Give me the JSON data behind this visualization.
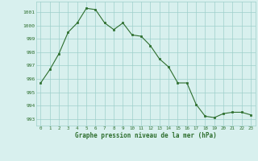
{
  "x": [
    0,
    1,
    2,
    3,
    4,
    5,
    6,
    7,
    8,
    9,
    10,
    11,
    12,
    13,
    14,
    15,
    16,
    17,
    18,
    19,
    20,
    21,
    22,
    23
  ],
  "y": [
    995.7,
    996.7,
    997.9,
    999.5,
    1000.2,
    1001.3,
    1001.2,
    1000.2,
    999.7,
    1000.2,
    999.3,
    999.2,
    998.5,
    997.5,
    996.9,
    995.7,
    995.7,
    994.1,
    993.2,
    993.1,
    993.4,
    993.5,
    993.5,
    993.3
  ],
  "line_color": "#2d6e2d",
  "marker_color": "#2d6e2d",
  "bg_color": "#d8f0ee",
  "grid_color": "#9ecfcb",
  "text_color": "#2d6e2d",
  "xlabel": "Graphe pression niveau de la mer (hPa)",
  "ylim_min": 992.5,
  "ylim_max": 1001.8,
  "yticks": [
    993,
    994,
    995,
    996,
    997,
    998,
    999,
    1000,
    1001
  ],
  "xticks": [
    0,
    1,
    2,
    3,
    4,
    5,
    6,
    7,
    8,
    9,
    10,
    11,
    12,
    13,
    14,
    15,
    16,
    17,
    18,
    19,
    20,
    21,
    22,
    23
  ]
}
